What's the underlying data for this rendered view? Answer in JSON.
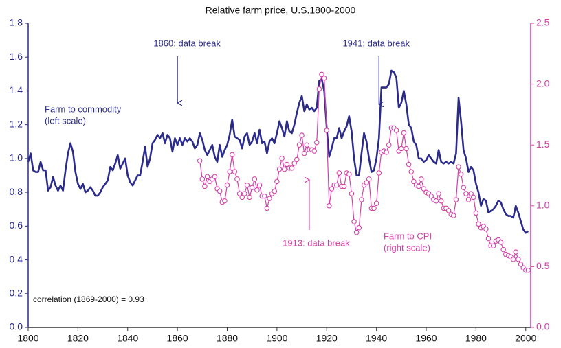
{
  "chart_data": {
    "type": "line",
    "title": "Relative farm price, U.S.1800-2000",
    "x": [
      1800,
      1801,
      1802,
      1803,
      1804,
      1805,
      1806,
      1807,
      1808,
      1809,
      1810,
      1811,
      1812,
      1813,
      1814,
      1815,
      1816,
      1817,
      1818,
      1819,
      1820,
      1821,
      1822,
      1823,
      1824,
      1825,
      1826,
      1827,
      1828,
      1829,
      1830,
      1831,
      1832,
      1833,
      1834,
      1835,
      1836,
      1837,
      1838,
      1839,
      1840,
      1841,
      1842,
      1843,
      1844,
      1845,
      1846,
      1847,
      1848,
      1849,
      1850,
      1851,
      1852,
      1853,
      1854,
      1855,
      1856,
      1857,
      1858,
      1859,
      1860,
      1861,
      1862,
      1863,
      1864,
      1865,
      1866,
      1867,
      1868,
      1869,
      1870,
      1871,
      1872,
      1873,
      1874,
      1875,
      1876,
      1877,
      1878,
      1879,
      1880,
      1881,
      1882,
      1883,
      1884,
      1885,
      1886,
      1887,
      1888,
      1889,
      1890,
      1891,
      1892,
      1893,
      1894,
      1895,
      1896,
      1897,
      1898,
      1899,
      1900,
      1901,
      1902,
      1903,
      1904,
      1905,
      1906,
      1907,
      1908,
      1909,
      1910,
      1911,
      1912,
      1913,
      1914,
      1915,
      1916,
      1917,
      1918,
      1919,
      1920,
      1921,
      1922,
      1923,
      1924,
      1925,
      1926,
      1927,
      1928,
      1929,
      1930,
      1931,
      1932,
      1933,
      1934,
      1935,
      1936,
      1937,
      1938,
      1939,
      1940,
      1941,
      1942,
      1943,
      1944,
      1945,
      1946,
      1947,
      1948,
      1949,
      1950,
      1951,
      1952,
      1953,
      1954,
      1955,
      1956,
      1957,
      1958,
      1959,
      1960,
      1961,
      1962,
      1963,
      1964,
      1965,
      1966,
      1967,
      1968,
      1969,
      1970,
      1971,
      1972,
      1973,
      1974,
      1975,
      1976,
      1977,
      1978,
      1979,
      1980,
      1981,
      1982,
      1983,
      1984,
      1985,
      1986,
      1987,
      1988,
      1989,
      1990,
      1991,
      1992,
      1993,
      1994,
      1995,
      1996,
      1997,
      1998,
      1999,
      2000,
      2001
    ],
    "series": [
      {
        "name": "Farm to commodity",
        "scale_note": "(left scale)",
        "color": "#2b2b8c",
        "axis": "y",
        "values": [
          0.98,
          1.03,
          0.93,
          0.92,
          0.92,
          0.98,
          0.93,
          0.93,
          0.81,
          0.83,
          0.89,
          0.84,
          0.81,
          0.84,
          0.81,
          0.93,
          1.03,
          1.09,
          1.04,
          0.92,
          0.85,
          0.82,
          0.85,
          0.8,
          0.81,
          0.83,
          0.81,
          0.78,
          0.78,
          0.8,
          0.83,
          0.85,
          0.87,
          0.95,
          0.93,
          0.97,
          1.02,
          0.94,
          0.97,
          1.0,
          0.9,
          0.86,
          0.84,
          0.87,
          0.9,
          0.9,
          0.98,
          1.07,
          0.95,
          1.0,
          1.09,
          1.11,
          1.14,
          1.12,
          1.15,
          1.09,
          1.14,
          1.12,
          1.04,
          1.12,
          1.08,
          1.12,
          1.08,
          1.12,
          1.1,
          1.12,
          1.1,
          1.06,
          1.08,
          1.15,
          1.11,
          1.05,
          1.02,
          1.05,
          1.08,
          1.01,
          0.98,
          1.08,
          1.01,
          1.05,
          1.08,
          1.14,
          1.23,
          1.13,
          1.12,
          1.11,
          1.06,
          1.13,
          1.15,
          1.08,
          1.1,
          1.15,
          1.09,
          1.17,
          1.09,
          1.1,
          1.03,
          1.1,
          1.12,
          1.09,
          1.15,
          1.22,
          1.18,
          1.13,
          1.22,
          1.16,
          1.15,
          1.2,
          1.27,
          1.33,
          1.37,
          1.28,
          1.32,
          1.29,
          1.3,
          1.28,
          1.3,
          1.46,
          1.47,
          1.4,
          1.18,
          1.01,
          1.06,
          1.12,
          1.12,
          1.18,
          1.12,
          1.16,
          1.19,
          1.25,
          1.16,
          1.0,
          0.9,
          0.9,
          1.03,
          1.15,
          1.1,
          1.0,
          0.92,
          0.93,
          1.0,
          1.12,
          1.42,
          1.42,
          1.42,
          1.44,
          1.52,
          1.51,
          1.48,
          1.3,
          1.33,
          1.4,
          1.32,
          1.2,
          1.18,
          1.1,
          1.08,
          1.0,
          1.0,
          0.98,
          0.99,
          1.02,
          1.0,
          0.98,
          0.97,
          1.05,
          0.98,
          0.97,
          0.98,
          0.97,
          0.98,
          0.97,
          1.03,
          1.36,
          1.22,
          1.05,
          1.0,
          0.92,
          0.95,
          0.93,
          0.85,
          0.8,
          0.72,
          0.76,
          0.75,
          0.68,
          0.69,
          0.7,
          0.72,
          0.75,
          0.74,
          0.7,
          0.67,
          0.66,
          0.66,
          0.65,
          0.72,
          0.68,
          0.63,
          0.58,
          0.56,
          0.57
        ]
      },
      {
        "name": "Farm to CPI",
        "scale_note": "(right scale)",
        "color": "#d63fa8",
        "axis": "y2",
        "values": [
          null,
          null,
          null,
          null,
          null,
          null,
          null,
          null,
          null,
          null,
          null,
          null,
          null,
          null,
          null,
          null,
          null,
          null,
          null,
          null,
          null,
          null,
          null,
          null,
          null,
          null,
          null,
          null,
          null,
          null,
          null,
          null,
          null,
          null,
          null,
          null,
          null,
          null,
          null,
          null,
          null,
          null,
          null,
          null,
          null,
          null,
          null,
          null,
          null,
          null,
          null,
          null,
          null,
          null,
          null,
          null,
          null,
          null,
          null,
          null,
          null,
          null,
          null,
          null,
          null,
          null,
          null,
          null,
          null,
          1.37,
          1.22,
          1.16,
          1.24,
          1.2,
          1.22,
          1.24,
          1.14,
          1.12,
          1.03,
          1.04,
          1.17,
          1.28,
          1.42,
          1.28,
          1.22,
          1.1,
          1.07,
          1.1,
          1.17,
          1.07,
          1.15,
          1.22,
          1.13,
          1.17,
          1.08,
          1.08,
          0.98,
          1.06,
          1.1,
          1.12,
          1.2,
          1.3,
          1.39,
          1.3,
          1.34,
          1.31,
          1.31,
          1.35,
          1.38,
          1.5,
          1.58,
          1.43,
          1.5,
          1.46,
          1.46,
          1.45,
          1.52,
          1.96,
          2.08,
          2.05,
          1.62,
          1.0,
          1.14,
          1.17,
          1.17,
          1.27,
          1.16,
          1.16,
          1.27,
          1.26,
          1.1,
          0.87,
          0.78,
          0.82,
          1.05,
          1.17,
          1.19,
          1.22,
          0.98,
          0.98,
          1.02,
          1.27,
          1.44,
          1.45,
          1.44,
          1.5,
          1.64,
          1.64,
          1.62,
          1.45,
          1.47,
          1.6,
          1.47,
          1.34,
          1.28,
          1.2,
          1.17,
          1.16,
          1.22,
          1.14,
          1.11,
          1.1,
          1.08,
          1.05,
          1.04,
          1.1,
          1.04,
          0.98,
          0.98,
          0.96,
          0.93,
          0.92,
          1.05,
          1.32,
          1.26,
          1.15,
          1.1,
          1.05,
          1.1,
          1.07,
          0.94,
          0.85,
          0.82,
          0.83,
          0.81,
          0.73,
          0.67,
          0.67,
          0.71,
          0.72,
          0.7,
          0.64,
          0.6,
          0.59,
          0.58,
          0.56,
          0.62,
          0.56,
          0.52,
          0.49,
          0.47,
          0.47
        ]
      }
    ],
    "xlim": [
      1800,
      2002
    ],
    "xticks": [
      1800,
      1820,
      1840,
      1860,
      1880,
      1900,
      1920,
      1940,
      1960,
      1980,
      2000
    ],
    "ylim": [
      0,
      1.8
    ],
    "yticks": [
      {
        "value": 0,
        "label": "0.0"
      },
      {
        "value": 0.2,
        "label": "0.2"
      },
      {
        "value": 0.4,
        "label": "0.4"
      },
      {
        "value": 0.6,
        "label": "0.6"
      },
      {
        "value": 0.8,
        "label": "0.8"
      },
      {
        "value": 1,
        "label": "1.0"
      },
      {
        "value": 1.2,
        "label": "1.2"
      },
      {
        "value": 1.4,
        "label": "1.4"
      },
      {
        "value": 1.6,
        "label": "1.6"
      },
      {
        "value": 1.8,
        "label": "1.8"
      }
    ],
    "y2lim": [
      0,
      2.5
    ],
    "y2ticks": [
      {
        "value": 0,
        "label": "0.0"
      },
      {
        "value": 0.5,
        "label": "0.5"
      },
      {
        "value": 1,
        "label": "1.0"
      },
      {
        "value": 1.5,
        "label": "1.5"
      },
      {
        "value": 2,
        "label": "2.0"
      },
      {
        "value": 2.5,
        "label": "2.5"
      }
    ],
    "grid": false,
    "annotations": [
      {
        "text": "1860: data break",
        "x": 1860
      },
      {
        "text": "1941: data break",
        "x": 1941
      },
      {
        "text": "1913: data break",
        "x": 1913
      }
    ],
    "note": "correlation (1869-2000) = 0.93"
  }
}
